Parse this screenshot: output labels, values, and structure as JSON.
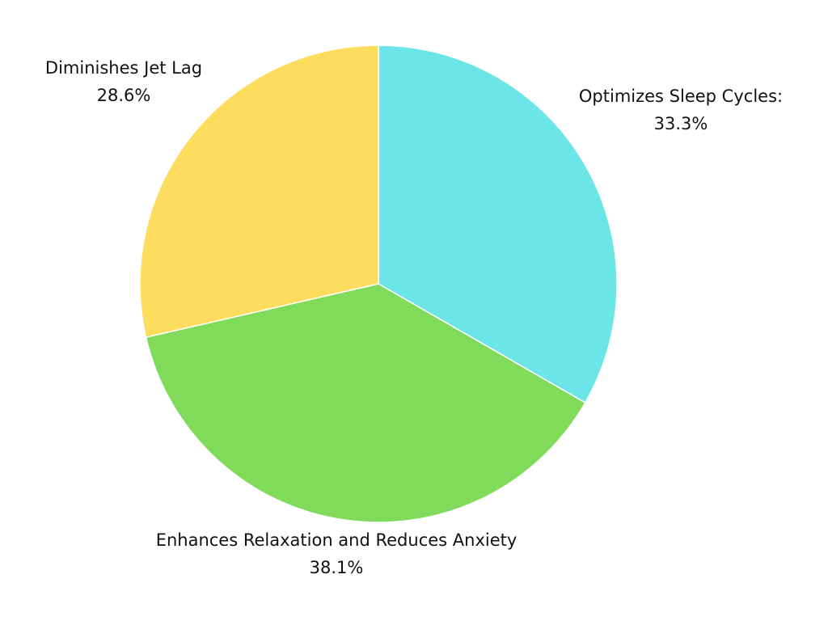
{
  "chart_data": {
    "type": "pie",
    "slices": [
      {
        "label": "Optimizes Sleep Cycles:",
        "value": 33.3,
        "value_label": "33.3%",
        "color": "#6be5e8"
      },
      {
        "label": "Enhances Relaxation and Reduces Anxiety",
        "value": 38.1,
        "value_label": "38.1%",
        "color": "#80db5a"
      },
      {
        "label": "Diminishes Jet Lag",
        "value": 28.6,
        "value_label": "28.6%",
        "color": "#fedc5e"
      }
    ],
    "start_angle": "12 o'clock",
    "direction": "clockwise",
    "legend": "none"
  }
}
